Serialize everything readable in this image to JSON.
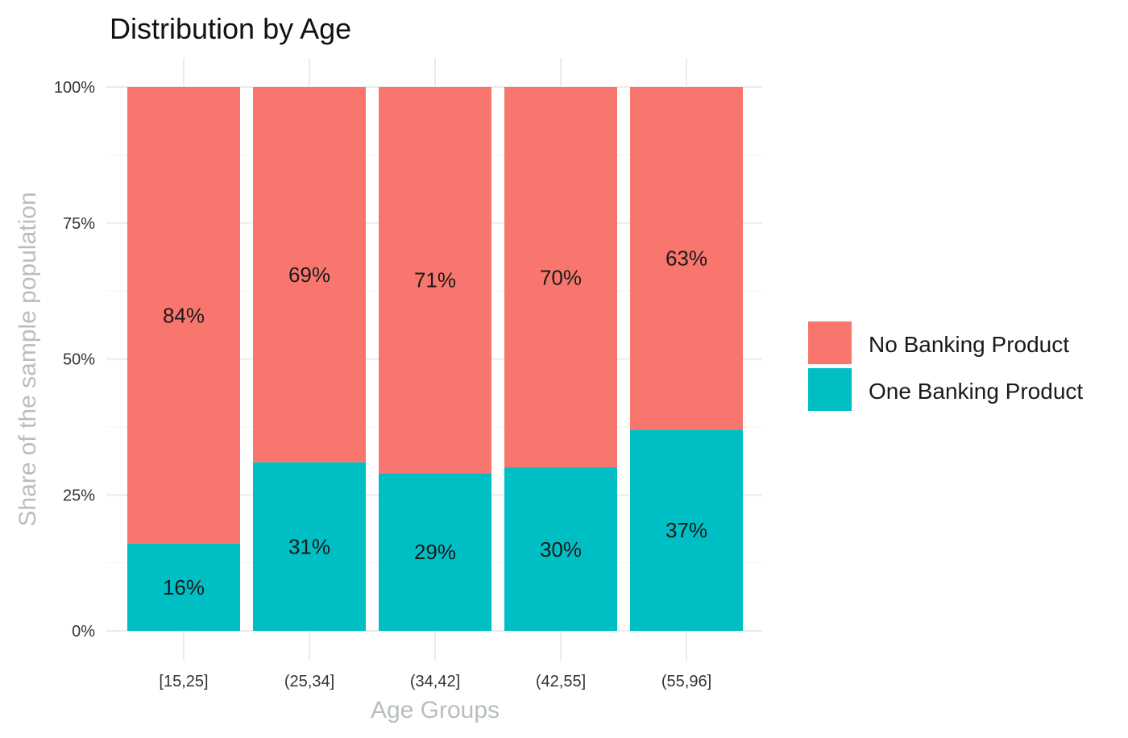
{
  "chart_data": {
    "type": "bar",
    "stacked": true,
    "title": "Distribution by Age",
    "xlabel": "Age Groups",
    "ylabel": "Share of the sample population",
    "categories": [
      "[15,25]",
      "(25,34]",
      "(34,42]",
      "(42,55]",
      "(55,96]"
    ],
    "series": [
      {
        "name": "One Banking Product",
        "color": "#00BFC4",
        "values": [
          16,
          31,
          29,
          30,
          37
        ],
        "labels": [
          "16%",
          "31%",
          "29%",
          "30%",
          "37%"
        ]
      },
      {
        "name": "No Banking Product",
        "color": "#F8766D",
        "values": [
          84,
          69,
          71,
          70,
          63
        ],
        "labels": [
          "84%",
          "69%",
          "71%",
          "70%",
          "63%"
        ]
      }
    ],
    "ylim": [
      0,
      100
    ],
    "yticks": [
      0,
      25,
      50,
      75,
      100
    ],
    "ytick_labels": [
      "0%",
      "25%",
      "50%",
      "75%",
      "100%"
    ],
    "grid": true,
    "legend": {
      "position": "right",
      "items": [
        {
          "label": "No Banking Product",
          "color": "#F8766D"
        },
        {
          "label": "One Banking Product",
          "color": "#00BFC4"
        }
      ]
    }
  }
}
